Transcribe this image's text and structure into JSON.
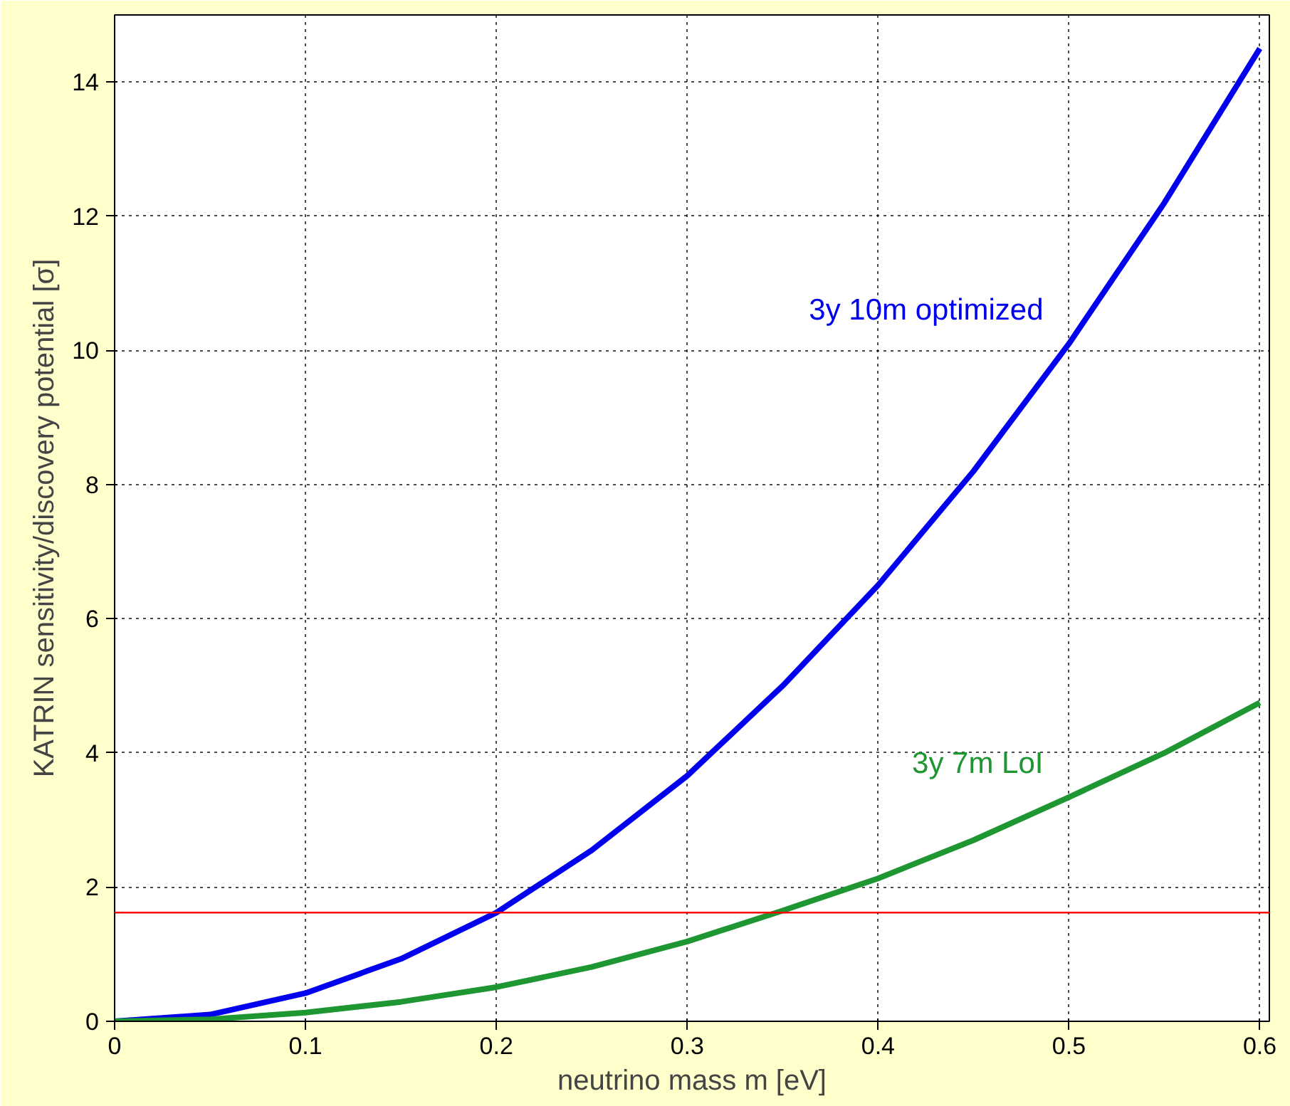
{
  "chart_data": {
    "type": "line",
    "xlabel": "neutrino mass m [eV]",
    "ylabel": "KATRIN sensitivity/discovery potential [σ]",
    "x": [
      0,
      0.05,
      0.1,
      0.15,
      0.2,
      0.25,
      0.3,
      0.35,
      0.4,
      0.45,
      0.5,
      0.55,
      0.6
    ],
    "series": [
      {
        "name": "3y 10m optimized",
        "color": "#0000ee",
        "values": [
          0,
          0.1,
          0.42,
          0.93,
          1.62,
          2.55,
          3.66,
          5.0,
          6.5,
          8.2,
          10.1,
          12.2,
          14.5
        ]
      },
      {
        "name": "3y 7m LoI",
        "color": "#1e9632",
        "values": [
          0,
          0.03,
          0.13,
          0.29,
          0.51,
          0.81,
          1.19,
          1.65,
          2.13,
          2.7,
          3.34,
          4.0,
          4.75
        ]
      }
    ],
    "xlim": [
      0,
      0.605
    ],
    "ylim": [
      0,
      15
    ],
    "xticks": [
      0,
      0.1,
      0.2,
      0.3,
      0.4,
      0.5,
      0.6
    ],
    "yticks": [
      0,
      2,
      4,
      6,
      8,
      10,
      12,
      14
    ],
    "ref_lines": [
      {
        "axis": "y",
        "value": 1.62,
        "color": "#ff0000"
      }
    ],
    "grid": true,
    "line_style": "solid",
    "marker": "none"
  }
}
